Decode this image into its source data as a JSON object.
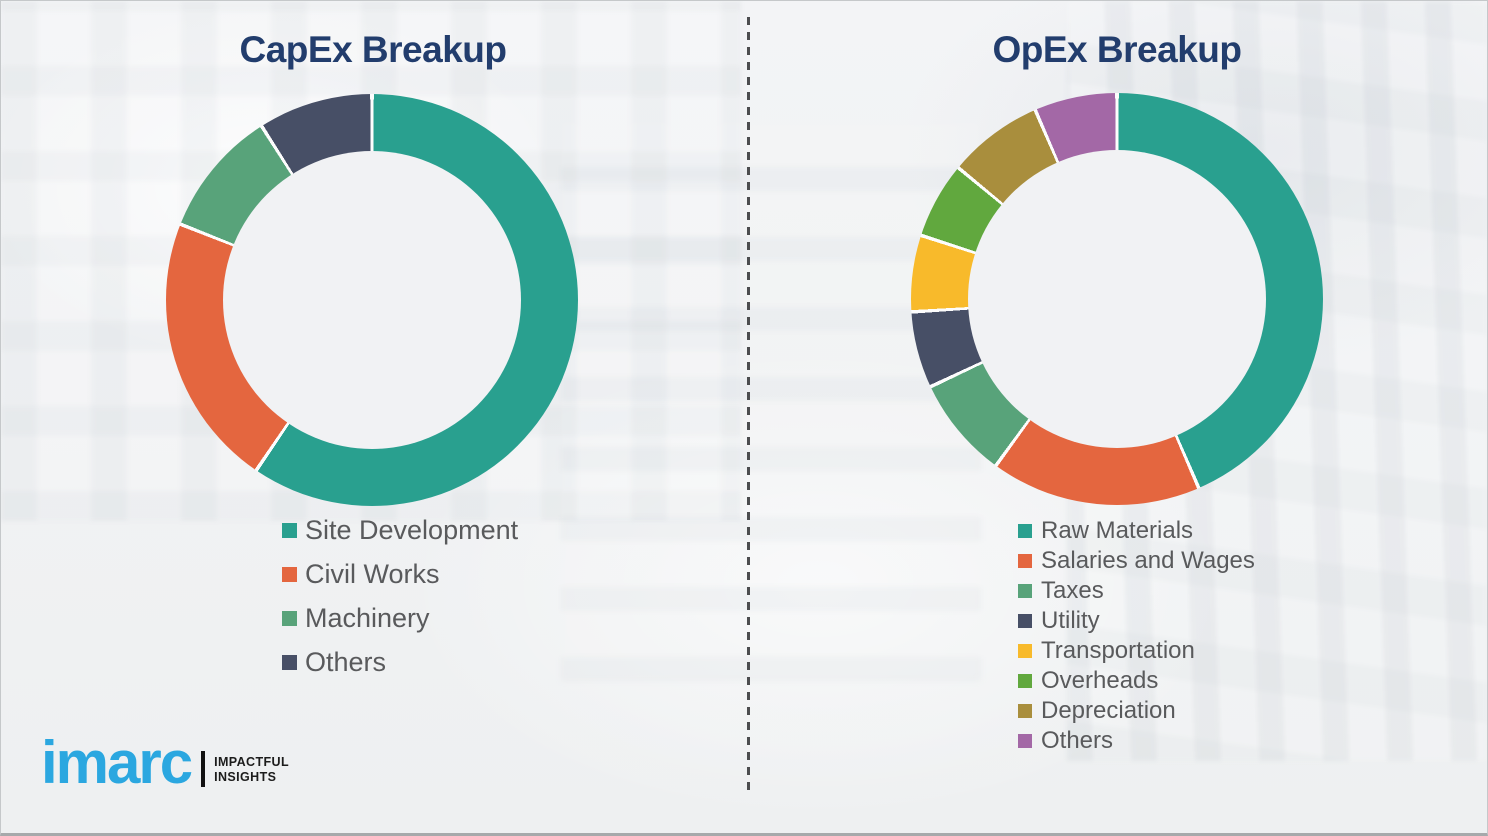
{
  "chart_data": [
    {
      "type": "pie",
      "subtype": "donut",
      "title": "CapEx Breakup",
      "labels": [
        "Site Development",
        "Civil Works",
        "Machinery",
        "Others"
      ],
      "values": [
        59.5,
        21.5,
        10,
        9
      ],
      "values_unit": "percent, estimated from arc angles (no numeric labels shown)",
      "colors": [
        "#29a08f",
        "#e4663f",
        "#58a37a",
        "#474f66"
      ],
      "start_angle_deg": 0,
      "direction": "clockwise",
      "legend_position": "below-chart-left",
      "grid": false
    },
    {
      "type": "pie",
      "subtype": "donut",
      "title": "OpEx Breakup",
      "labels": [
        "Raw Materials",
        "Salaries and Wages",
        "Taxes",
        "Utility",
        "Transportation",
        "Overheads",
        "Depreciation",
        "Others"
      ],
      "values": [
        43.5,
        16.5,
        8,
        6,
        6,
        6,
        7.5,
        6.5
      ],
      "values_unit": "percent, estimated from arc angles (no numeric labels shown)",
      "colors": [
        "#29a08f",
        "#e4663f",
        "#58a37a",
        "#474f66",
        "#f8ba2b",
        "#61a83e",
        "#a98e3d",
        "#a368a6"
      ],
      "start_angle_deg": 0,
      "direction": "clockwise",
      "legend_position": "below-chart-left",
      "grid": false
    }
  ],
  "logo": {
    "brand": "imarc",
    "tagline": [
      "IMPACTFUL",
      "INSIGHTS"
    ],
    "brand_color": "#2ba7e0"
  },
  "style_colors": {
    "title_navy": "#223d6d",
    "legend_text_gray": "#595a5c",
    "background": "#eff0f2",
    "divider": "#4c4d4f"
  }
}
